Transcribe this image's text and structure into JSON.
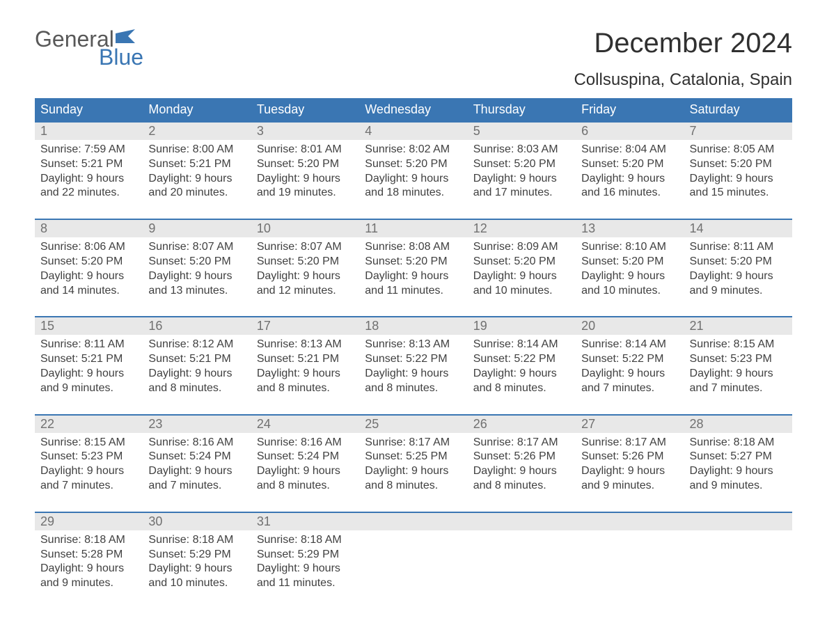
{
  "brand": {
    "top": "General",
    "bottom": "Blue"
  },
  "title": "December 2024",
  "location": "Collsuspina, Catalonia, Spain",
  "colors": {
    "header_bg": "#3a76b3",
    "header_text": "#ffffff",
    "daynum_bg": "#e8e8e8",
    "daynum_text": "#707070",
    "body_text": "#404040",
    "border": "#3a76b3"
  },
  "weekdays": [
    "Sunday",
    "Monday",
    "Tuesday",
    "Wednesday",
    "Thursday",
    "Friday",
    "Saturday"
  ],
  "weeks": [
    [
      {
        "n": "1",
        "sr": "7:59 AM",
        "ss": "5:21 PM",
        "d1": "9 hours",
        "d2": "and 22 minutes."
      },
      {
        "n": "2",
        "sr": "8:00 AM",
        "ss": "5:21 PM",
        "d1": "9 hours",
        "d2": "and 20 minutes."
      },
      {
        "n": "3",
        "sr": "8:01 AM",
        "ss": "5:20 PM",
        "d1": "9 hours",
        "d2": "and 19 minutes."
      },
      {
        "n": "4",
        "sr": "8:02 AM",
        "ss": "5:20 PM",
        "d1": "9 hours",
        "d2": "and 18 minutes."
      },
      {
        "n": "5",
        "sr": "8:03 AM",
        "ss": "5:20 PM",
        "d1": "9 hours",
        "d2": "and 17 minutes."
      },
      {
        "n": "6",
        "sr": "8:04 AM",
        "ss": "5:20 PM",
        "d1": "9 hours",
        "d2": "and 16 minutes."
      },
      {
        "n": "7",
        "sr": "8:05 AM",
        "ss": "5:20 PM",
        "d1": "9 hours",
        "d2": "and 15 minutes."
      }
    ],
    [
      {
        "n": "8",
        "sr": "8:06 AM",
        "ss": "5:20 PM",
        "d1": "9 hours",
        "d2": "and 14 minutes."
      },
      {
        "n": "9",
        "sr": "8:07 AM",
        "ss": "5:20 PM",
        "d1": "9 hours",
        "d2": "and 13 minutes."
      },
      {
        "n": "10",
        "sr": "8:07 AM",
        "ss": "5:20 PM",
        "d1": "9 hours",
        "d2": "and 12 minutes."
      },
      {
        "n": "11",
        "sr": "8:08 AM",
        "ss": "5:20 PM",
        "d1": "9 hours",
        "d2": "and 11 minutes."
      },
      {
        "n": "12",
        "sr": "8:09 AM",
        "ss": "5:20 PM",
        "d1": "9 hours",
        "d2": "and 10 minutes."
      },
      {
        "n": "13",
        "sr": "8:10 AM",
        "ss": "5:20 PM",
        "d1": "9 hours",
        "d2": "and 10 minutes."
      },
      {
        "n": "14",
        "sr": "8:11 AM",
        "ss": "5:20 PM",
        "d1": "9 hours",
        "d2": "and 9 minutes."
      }
    ],
    [
      {
        "n": "15",
        "sr": "8:11 AM",
        "ss": "5:21 PM",
        "d1": "9 hours",
        "d2": "and 9 minutes."
      },
      {
        "n": "16",
        "sr": "8:12 AM",
        "ss": "5:21 PM",
        "d1": "9 hours",
        "d2": "and 8 minutes."
      },
      {
        "n": "17",
        "sr": "8:13 AM",
        "ss": "5:21 PM",
        "d1": "9 hours",
        "d2": "and 8 minutes."
      },
      {
        "n": "18",
        "sr": "8:13 AM",
        "ss": "5:22 PM",
        "d1": "9 hours",
        "d2": "and 8 minutes."
      },
      {
        "n": "19",
        "sr": "8:14 AM",
        "ss": "5:22 PM",
        "d1": "9 hours",
        "d2": "and 8 minutes."
      },
      {
        "n": "20",
        "sr": "8:14 AM",
        "ss": "5:22 PM",
        "d1": "9 hours",
        "d2": "and 7 minutes."
      },
      {
        "n": "21",
        "sr": "8:15 AM",
        "ss": "5:23 PM",
        "d1": "9 hours",
        "d2": "and 7 minutes."
      }
    ],
    [
      {
        "n": "22",
        "sr": "8:15 AM",
        "ss": "5:23 PM",
        "d1": "9 hours",
        "d2": "and 7 minutes."
      },
      {
        "n": "23",
        "sr": "8:16 AM",
        "ss": "5:24 PM",
        "d1": "9 hours",
        "d2": "and 7 minutes."
      },
      {
        "n": "24",
        "sr": "8:16 AM",
        "ss": "5:24 PM",
        "d1": "9 hours",
        "d2": "and 8 minutes."
      },
      {
        "n": "25",
        "sr": "8:17 AM",
        "ss": "5:25 PM",
        "d1": "9 hours",
        "d2": "and 8 minutes."
      },
      {
        "n": "26",
        "sr": "8:17 AM",
        "ss": "5:26 PM",
        "d1": "9 hours",
        "d2": "and 8 minutes."
      },
      {
        "n": "27",
        "sr": "8:17 AM",
        "ss": "5:26 PM",
        "d1": "9 hours",
        "d2": "and 9 minutes."
      },
      {
        "n": "28",
        "sr": "8:18 AM",
        "ss": "5:27 PM",
        "d1": "9 hours",
        "d2": "and 9 minutes."
      }
    ],
    [
      {
        "n": "29",
        "sr": "8:18 AM",
        "ss": "5:28 PM",
        "d1": "9 hours",
        "d2": "and 9 minutes."
      },
      {
        "n": "30",
        "sr": "8:18 AM",
        "ss": "5:29 PM",
        "d1": "9 hours",
        "d2": "and 10 minutes."
      },
      {
        "n": "31",
        "sr": "8:18 AM",
        "ss": "5:29 PM",
        "d1": "9 hours",
        "d2": "and 11 minutes."
      },
      null,
      null,
      null,
      null
    ]
  ],
  "labels": {
    "sunrise": "Sunrise: ",
    "sunset": "Sunset: ",
    "daylight": "Daylight: "
  }
}
